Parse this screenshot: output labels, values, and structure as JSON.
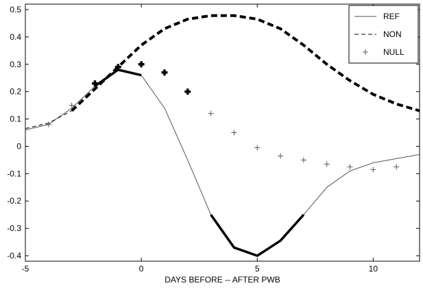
{
  "chart_data": {
    "type": "line",
    "xlabel": "DAYS BEFORE -- AFTER PWB",
    "ylabel": "",
    "title": "",
    "xlim": [
      -5,
      12
    ],
    "ylim": [
      -0.42,
      0.52
    ],
    "xticks": [
      -5,
      0,
      5,
      10
    ],
    "yticks": [
      -0.4,
      -0.3,
      -0.2,
      -0.1,
      0,
      0.1,
      0.2,
      0.3,
      0.4,
      0.5
    ],
    "xtick_labels": [
      "-5",
      "0",
      "5",
      "10"
    ],
    "ytick_labels": [
      "-0.4",
      "-0.3",
      "-0.2",
      "-0.1",
      "0",
      "0.1",
      "0.2",
      "0.3",
      "0.4",
      "0.5"
    ],
    "grid": false,
    "legend_position": "top-right",
    "series": [
      {
        "name": "REF",
        "style": "solid",
        "color": "#555555",
        "x": [
          -5,
          -4,
          -3,
          -2,
          -1,
          0,
          1,
          2,
          3,
          4,
          5,
          6,
          7,
          8,
          9,
          10,
          11,
          12
        ],
        "y": [
          0.06,
          0.08,
          0.14,
          0.22,
          0.28,
          0.26,
          0.14,
          -0.05,
          -0.25,
          -0.37,
          -0.4,
          -0.345,
          -0.25,
          -0.15,
          -0.09,
          -0.06,
          -0.045,
          -0.03
        ],
        "bold_segments": [
          [
            -2,
            0
          ],
          [
            3,
            7
          ]
        ]
      },
      {
        "name": "NON",
        "style": "dashed",
        "color": "#000000",
        "x": [
          -5,
          -4,
          -3,
          -2,
          -1,
          0,
          1,
          2,
          3,
          4,
          5,
          6,
          7,
          8,
          9,
          10,
          11,
          12
        ],
        "y": [
          0.065,
          0.085,
          0.13,
          0.21,
          0.29,
          0.37,
          0.43,
          0.465,
          0.478,
          0.478,
          0.465,
          0.43,
          0.37,
          0.3,
          0.24,
          0.19,
          0.155,
          0.13
        ],
        "bold_range": [
          -3,
          12
        ]
      },
      {
        "name": "NULL",
        "style": "marker-plus",
        "color": "#555555",
        "x": [
          -4,
          -3,
          -2,
          -1,
          0,
          1,
          2,
          3,
          4,
          5,
          6,
          7,
          8,
          9,
          10,
          11
        ],
        "y": [
          0.08,
          0.15,
          0.23,
          0.29,
          0.3,
          0.27,
          0.2,
          0.12,
          0.05,
          -0.005,
          -0.035,
          -0.05,
          -0.065,
          -0.075,
          -0.085,
          -0.075
        ],
        "bold_points_x": [
          -2,
          -1,
          0,
          1,
          2
        ]
      }
    ]
  }
}
